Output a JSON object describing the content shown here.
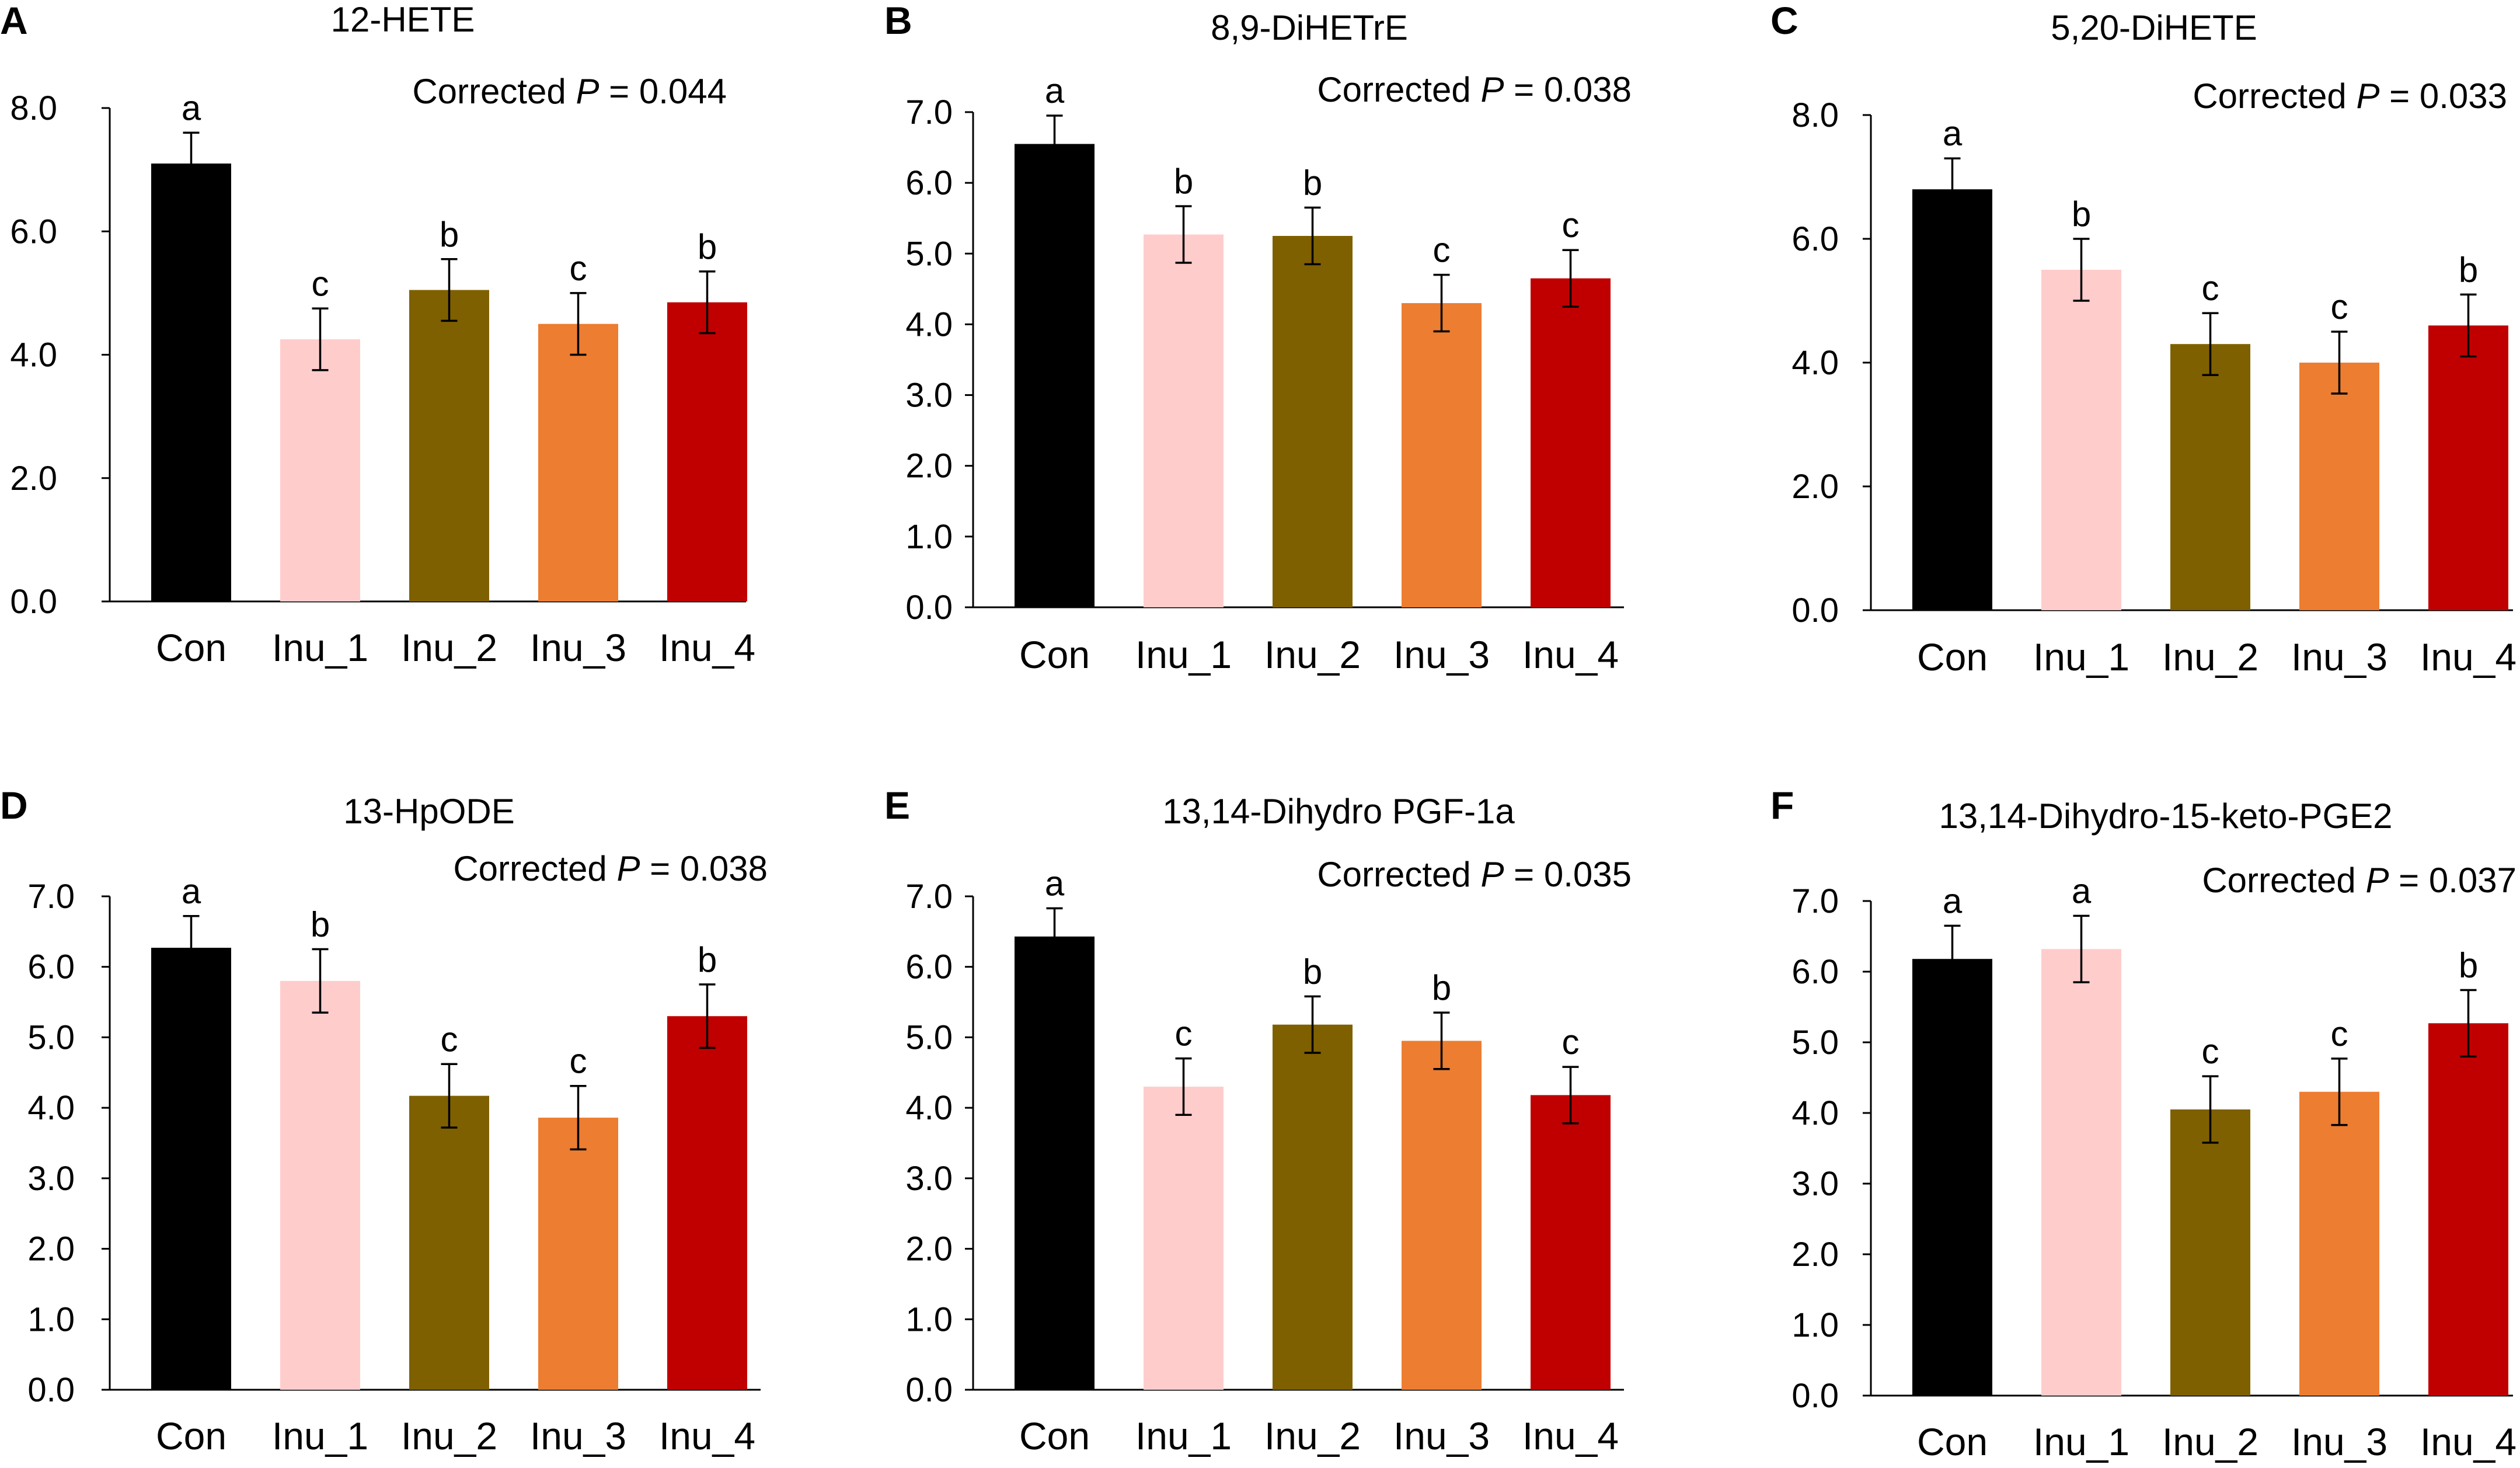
{
  "figure": {
    "colors": [
      "#000000",
      "#ffcccc",
      "#7f6000",
      "#ed7d31",
      "#c00000"
    ]
  },
  "chart_data": [
    {
      "panel": "A",
      "type": "bar",
      "title": "12-HETE",
      "pvalue_prefix": "Corrected",
      "pvalue_symbol": "P",
      "pvalue_rest": "= 0.044",
      "categories": [
        "Con",
        "Inu_1",
        "Inu_2",
        "Inu_3",
        "Inu_4"
      ],
      "values": [
        7.1,
        4.25,
        5.05,
        4.5,
        4.85
      ],
      "errors": [
        0.5,
        0.5,
        0.5,
        0.5,
        0.5
      ],
      "significance": [
        "a",
        "c",
        "b",
        "c",
        "b"
      ],
      "ylim": [
        0,
        8
      ],
      "yticks": [
        "0.0",
        "2.0",
        "4.0",
        "6.0",
        "8.0"
      ],
      "xlabel": "",
      "ylabel": ""
    },
    {
      "panel": "B",
      "type": "bar",
      "title": "8,9-DiHETrE",
      "pvalue_prefix": "Corrected",
      "pvalue_symbol": "P",
      "pvalue_rest": "= 0.038",
      "categories": [
        "Con",
        "Inu_1",
        "Inu_2",
        "Inu_3",
        "Inu_4"
      ],
      "values": [
        6.55,
        5.27,
        5.25,
        4.3,
        4.65
      ],
      "errors": [
        0.4,
        0.4,
        0.4,
        0.4,
        0.4
      ],
      "significance": [
        "a",
        "b",
        "b",
        "c",
        "c"
      ],
      "ylim": [
        0,
        7
      ],
      "yticks": [
        "0.0",
        "1.0",
        "2.0",
        "3.0",
        "4.0",
        "5.0",
        "6.0",
        "7.0"
      ],
      "xlabel": "",
      "ylabel": ""
    },
    {
      "panel": "C",
      "type": "bar",
      "title": "5,20-DiHETE",
      "pvalue_prefix": "Corrected",
      "pvalue_symbol": "P",
      "pvalue_rest": "= 0.033",
      "categories": [
        "Con",
        "Inu_1",
        "Inu_2",
        "Inu_3",
        "Inu_4"
      ],
      "values": [
        6.8,
        5.5,
        4.3,
        4.0,
        4.6
      ],
      "errors": [
        0.5,
        0.5,
        0.5,
        0.5,
        0.5
      ],
      "significance": [
        "a",
        "b",
        "c",
        "c",
        "b"
      ],
      "ylim": [
        0,
        8
      ],
      "yticks": [
        "0.0",
        "2.0",
        "4.0",
        "6.0",
        "8.0"
      ],
      "xlabel": "",
      "ylabel": ""
    },
    {
      "panel": "D",
      "type": "bar",
      "title": "13-HpODE",
      "pvalue_prefix": "Corrected",
      "pvalue_symbol": "P",
      "pvalue_rest": "= 0.038",
      "categories": [
        "Con",
        "Inu_1",
        "Inu_2",
        "Inu_3",
        "Inu_4"
      ],
      "values": [
        6.27,
        5.8,
        4.17,
        3.86,
        5.3
      ],
      "errors": [
        0.45,
        0.45,
        0.45,
        0.45,
        0.45
      ],
      "significance": [
        "a",
        "b",
        "c",
        "c",
        "b"
      ],
      "ylim": [
        0,
        7
      ],
      "yticks": [
        "0.0",
        "1.0",
        "2.0",
        "3.0",
        "4.0",
        "5.0",
        "6.0",
        "7.0"
      ],
      "xlabel": "",
      "ylabel": ""
    },
    {
      "panel": "E",
      "type": "bar",
      "title": "13,14-Dihydro PGF-1a",
      "pvalue_prefix": "Corrected",
      "pvalue_symbol": "P",
      "pvalue_rest": "= 0.035",
      "categories": [
        "Con",
        "Inu_1",
        "Inu_2",
        "Inu_3",
        "Inu_4"
      ],
      "values": [
        6.43,
        4.3,
        5.18,
        4.95,
        4.18
      ],
      "errors": [
        0.4,
        0.4,
        0.4,
        0.4,
        0.4
      ],
      "significance": [
        "a",
        "c",
        "b",
        "b",
        "c"
      ],
      "ylim": [
        0,
        7
      ],
      "yticks": [
        "0.0",
        "1.0",
        "2.0",
        "3.0",
        "4.0",
        "5.0",
        "6.0",
        "7.0"
      ],
      "xlabel": "",
      "ylabel": ""
    },
    {
      "panel": "F",
      "type": "bar",
      "title": "13,14-Dihydro-15-keto-PGE2",
      "pvalue_prefix": "Corrected",
      "pvalue_symbol": "P",
      "pvalue_rest": "= 0.037",
      "categories": [
        "Con",
        "Inu_1",
        "Inu_2",
        "Inu_3",
        "Inu_4"
      ],
      "values": [
        6.18,
        6.32,
        4.05,
        4.3,
        5.27
      ],
      "errors": [
        0.47,
        0.47,
        0.47,
        0.47,
        0.47
      ],
      "significance": [
        "a",
        "a",
        "c",
        "c",
        "b"
      ],
      "ylim": [
        0,
        7
      ],
      "yticks": [
        "0.0",
        "1.0",
        "2.0",
        "3.0",
        "4.0",
        "5.0",
        "6.0",
        "7.0"
      ],
      "xlabel": "",
      "ylabel": ""
    }
  ]
}
